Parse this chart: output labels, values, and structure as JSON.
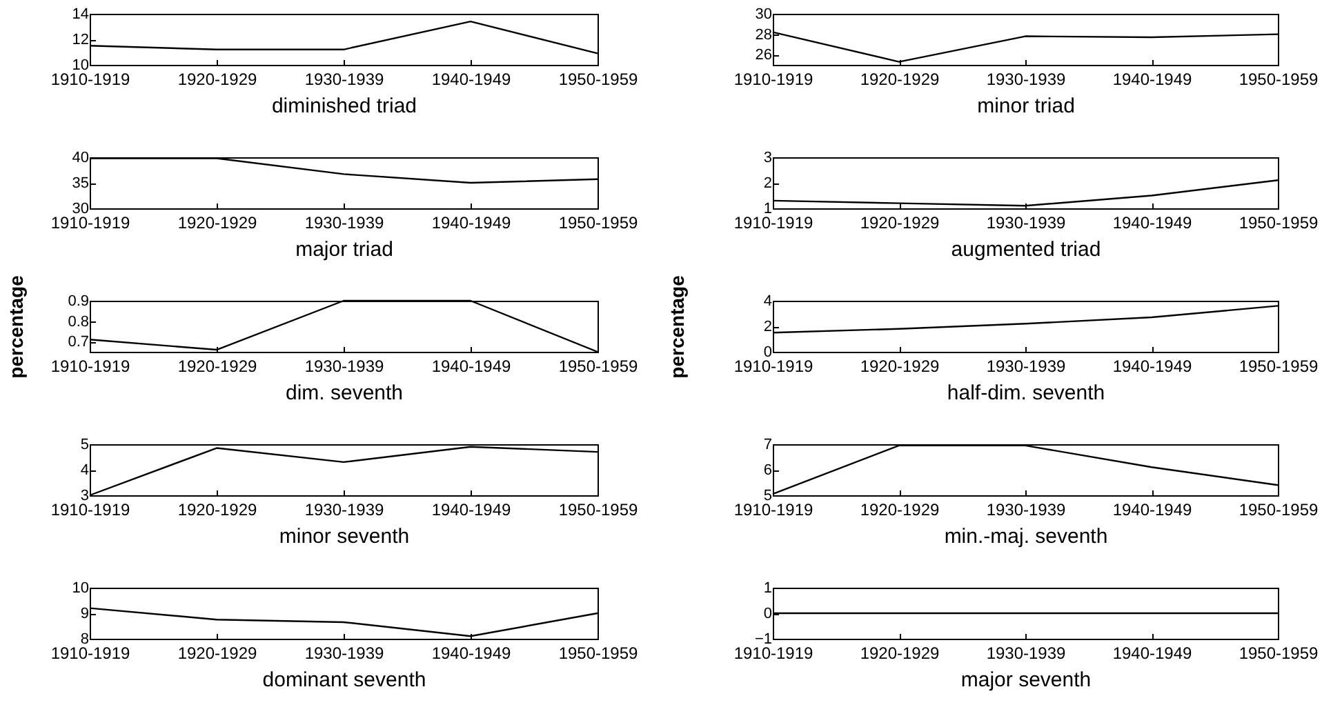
{
  "chart_data": [
    {
      "type": "line",
      "xlabel": "diminished triad",
      "categories": [
        "1910-1919",
        "1920-1929",
        "1930-1939",
        "1940-1949",
        "1950-1959"
      ],
      "series": [
        {
          "color": "#000000",
          "values": [
            11.5,
            11.2,
            11.2,
            13.4,
            10.9
          ]
        }
      ],
      "ylim": [
        10,
        14
      ],
      "yticks": [
        10,
        12,
        14
      ]
    },
    {
      "type": "line",
      "xlabel": "minor triad",
      "categories": [
        "1910-1919",
        "1920-1929",
        "1930-1939",
        "1940-1949",
        "1950-1959"
      ],
      "series": [
        {
          "color": "#000000",
          "values": [
            28.2,
            25.3,
            27.8,
            27.7,
            28.0
          ]
        }
      ],
      "ylim": [
        25,
        30
      ],
      "yticks": [
        26,
        28,
        30
      ]
    },
    {
      "type": "line",
      "xlabel": "major triad",
      "categories": [
        "1910-1919",
        "1920-1929",
        "1930-1939",
        "1940-1949",
        "1950-1959"
      ],
      "series": [
        {
          "color": "#000000",
          "values": [
            39.8,
            39.8,
            36.7,
            35,
            35.7
          ]
        }
      ],
      "ylim": [
        30,
        40
      ],
      "yticks": [
        30,
        35,
        40
      ]
    },
    {
      "type": "line",
      "xlabel": "augmented triad",
      "categories": [
        "1910-1919",
        "1920-1929",
        "1930-1939",
        "1940-1949",
        "1950-1959"
      ],
      "series": [
        {
          "color": "#000000",
          "values": [
            1.3,
            1.2,
            1.1,
            1.5,
            2.1
          ]
        }
      ],
      "ylim": [
        1,
        3
      ],
      "yticks": [
        1,
        2,
        3
      ]
    },
    {
      "type": "line",
      "xlabel": "dim. seventh",
      "ylabel": "percentage",
      "categories": [
        "1910-1919",
        "1920-1929",
        "1930-1939",
        "1940-1949",
        "1950-1959"
      ],
      "series": [
        {
          "color": "#000000",
          "values": [
            0.71,
            0.66,
            0.9,
            0.9,
            0.65
          ]
        }
      ],
      "ylim": [
        0.65,
        0.9
      ],
      "yticks": [
        0.7,
        0.8,
        0.9
      ]
    },
    {
      "type": "line",
      "xlabel": "half-dim. seventh",
      "ylabel": "percentage",
      "categories": [
        "1910-1919",
        "1920-1929",
        "1930-1939",
        "1940-1949",
        "1950-1959"
      ],
      "series": [
        {
          "color": "#000000",
          "values": [
            1.5,
            1.8,
            2.2,
            2.7,
            3.6
          ]
        }
      ],
      "ylim": [
        0,
        4
      ],
      "yticks": [
        0,
        2,
        4
      ]
    },
    {
      "type": "line",
      "xlabel": "minor seventh",
      "categories": [
        "1910-1919",
        "1920-1929",
        "1930-1939",
        "1940-1949",
        "1950-1959"
      ],
      "series": [
        {
          "color": "#000000",
          "values": [
            3.0,
            4.85,
            4.3,
            4.9,
            4.7
          ]
        }
      ],
      "ylim": [
        3,
        5
      ],
      "yticks": [
        3,
        4,
        5
      ]
    },
    {
      "type": "line",
      "xlabel": "min.-maj. seventh",
      "categories": [
        "1910-1919",
        "1920-1929",
        "1930-1939",
        "1940-1949",
        "1950-1959"
      ],
      "series": [
        {
          "color": "#000000",
          "values": [
            5.05,
            6.95,
            6.95,
            6.1,
            5.4
          ]
        }
      ],
      "ylim": [
        5,
        7
      ],
      "yticks": [
        5,
        6,
        7
      ]
    },
    {
      "type": "line",
      "xlabel": "dominant seventh",
      "categories": [
        "1910-1919",
        "1920-1929",
        "1930-1939",
        "1940-1949",
        "1950-1959"
      ],
      "series": [
        {
          "color": "#000000",
          "values": [
            9.2,
            8.75,
            8.65,
            8.1,
            9.0
          ]
        }
      ],
      "ylim": [
        8,
        10
      ],
      "yticks": [
        8,
        9,
        10
      ]
    },
    {
      "type": "line",
      "xlabel": "major seventh",
      "categories": [
        "1910-1919",
        "1920-1929",
        "1930-1939",
        "1940-1949",
        "1950-1959"
      ],
      "series": [
        {
          "color": "#000000",
          "values": [
            0,
            0,
            0,
            0,
            0
          ]
        }
      ],
      "ylim": [
        -1,
        1
      ],
      "yticks": [
        -1,
        0,
        1
      ]
    }
  ]
}
